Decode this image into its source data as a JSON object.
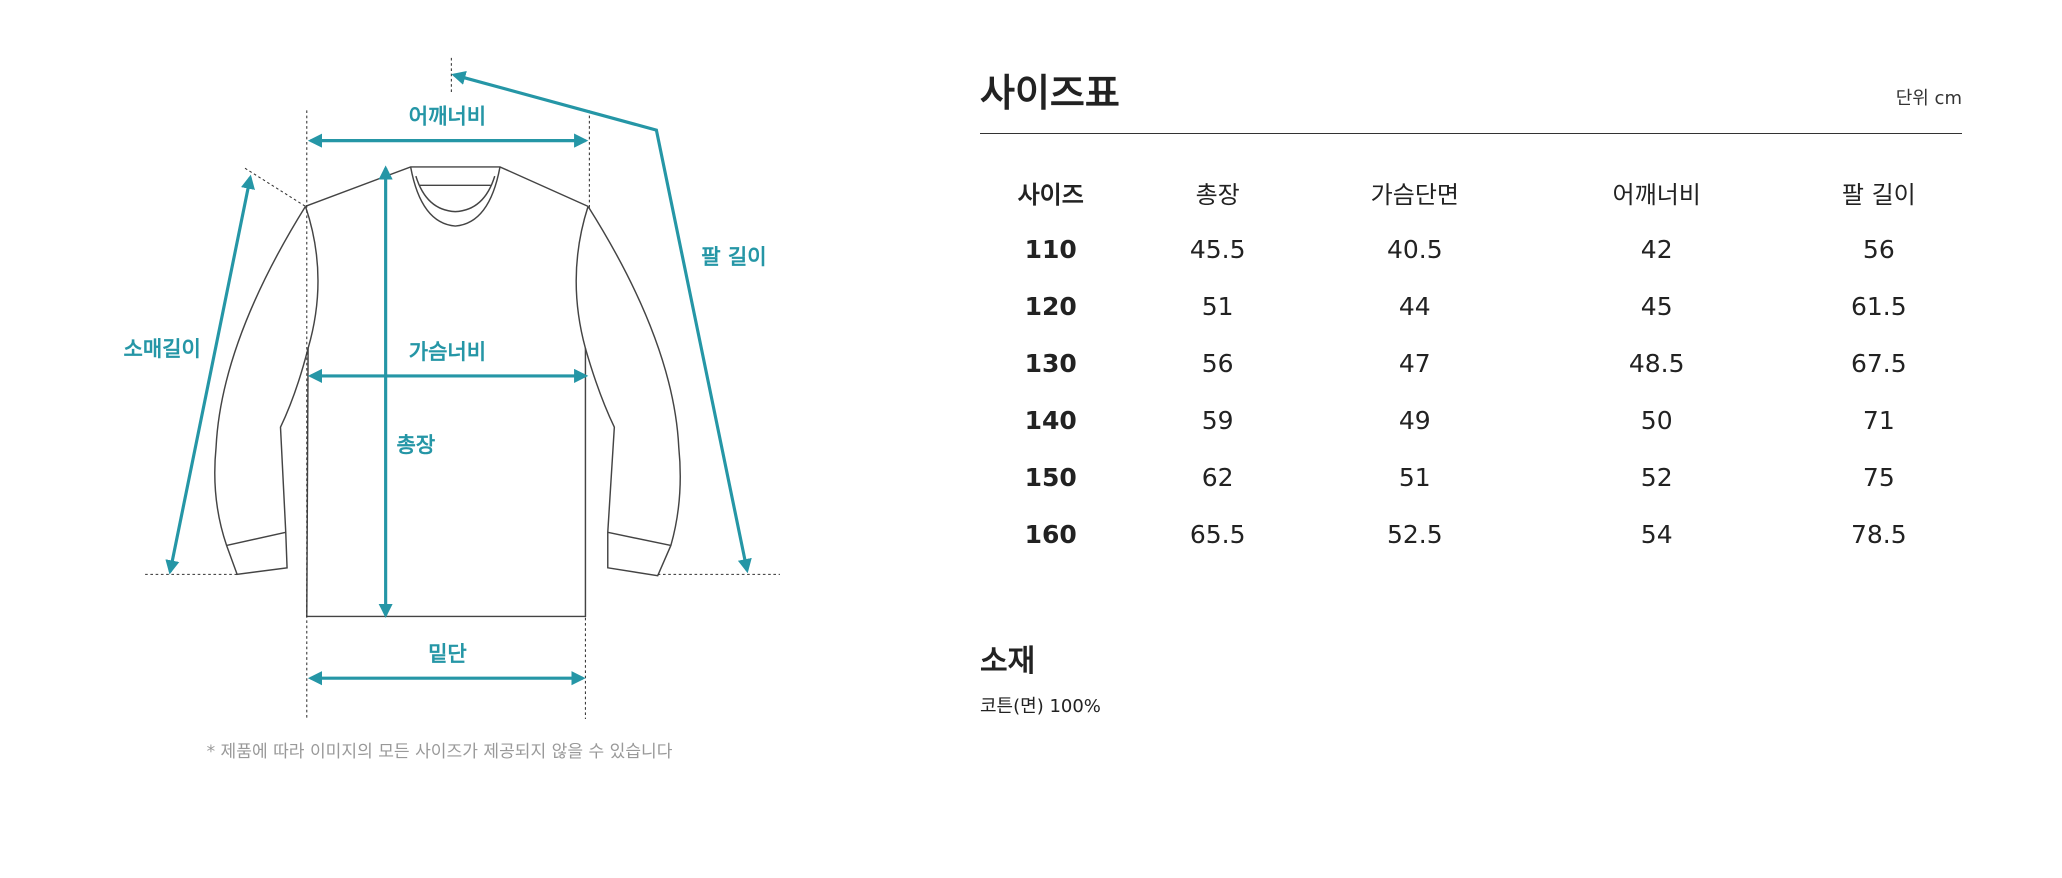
{
  "diagram": {
    "labels": {
      "shoulder": "어깨너비",
      "chest": "가슴너비",
      "length": "총장",
      "hem": "밑단",
      "sleeve": "소매길이",
      "arm": "팔 길이"
    },
    "note": "* 제품에 따라 이미지의 모든 사이즈가 제공되지 않을 수 있습니다",
    "accent_color": "#2596a6"
  },
  "size_table": {
    "title": "사이즈표",
    "unit": "단위 cm",
    "headers": [
      "사이즈",
      "총장",
      "가슴단면",
      "어깨너비",
      "팔 길이"
    ],
    "rows": [
      [
        "110",
        "45.5",
        "40.5",
        "42",
        "56"
      ],
      [
        "120",
        "51",
        "44",
        "45",
        "61.5"
      ],
      [
        "130",
        "56",
        "47",
        "48.5",
        "67.5"
      ],
      [
        "140",
        "59",
        "49",
        "50",
        "71"
      ],
      [
        "150",
        "62",
        "51",
        "52",
        "75"
      ],
      [
        "160",
        "65.5",
        "52.5",
        "54",
        "78.5"
      ]
    ]
  },
  "material": {
    "title": "소재",
    "value": "코튼(면) 100%"
  }
}
